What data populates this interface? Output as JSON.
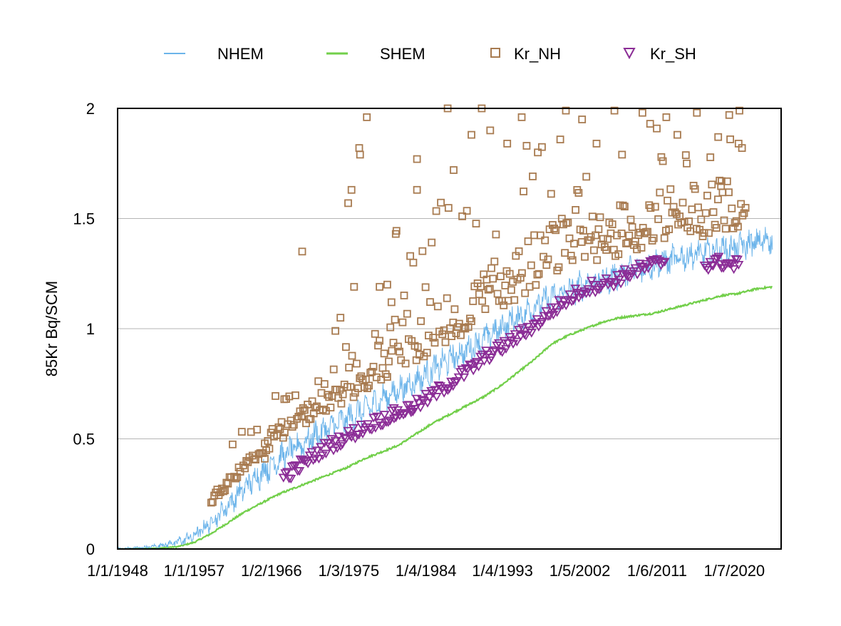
{
  "colors": {
    "nhem": "#6cb4ea",
    "shem": "#72cf4a",
    "kr_nh": "#a87b50",
    "kr_sh": "#8b2d96",
    "grid": "#b5b5b5",
    "axis": "#000000"
  },
  "chart_data": {
    "type": "line",
    "title": "",
    "xlabel": "",
    "ylabel": "85Kr Bq/SCM",
    "ylim": [
      0,
      2
    ],
    "yticks": [
      {
        "value": 0,
        "label": "0"
      },
      {
        "value": 0.5,
        "label": "0.5"
      },
      {
        "value": 1,
        "label": "1"
      },
      {
        "value": 1.5,
        "label": "1.5"
      },
      {
        "value": 2,
        "label": "2"
      }
    ],
    "xlim": [
      "1/1/1948",
      "1/1/2026"
    ],
    "xticks": [
      "1/1/1948",
      "1/1/1957",
      "1/2/1966",
      "1/3/1975",
      "1/4/1984",
      "1/4/1993",
      "1/5/2002",
      "1/6/2011",
      "1/7/2020"
    ],
    "grid": "horizontal",
    "legend_position": "top",
    "legend": [
      {
        "name": "NHEM",
        "marker": "line"
      },
      {
        "name": "SHEM",
        "marker": "line"
      },
      {
        "name": "Kr_NH",
        "marker": "square"
      },
      {
        "name": "Kr_SH",
        "marker": "triangle-down"
      }
    ],
    "series": [
      {
        "name": "NHEM",
        "kind": "line",
        "x": [
          1948,
          1952,
          1955,
          1957,
          1959,
          1961,
          1963,
          1965,
          1967,
          1969,
          1971,
          1973,
          1975,
          1977,
          1979,
          1981,
          1983,
          1985,
          1987,
          1989,
          1991,
          1993,
          1995,
          1997,
          1999,
          2001,
          2003,
          2005,
          2007,
          2009,
          2011,
          2013,
          2015,
          2017,
          2019,
          2021,
          2023,
          2025
        ],
        "y": [
          0.0,
          0.01,
          0.03,
          0.06,
          0.12,
          0.2,
          0.28,
          0.35,
          0.41,
          0.46,
          0.51,
          0.55,
          0.59,
          0.63,
          0.68,
          0.72,
          0.76,
          0.81,
          0.86,
          0.9,
          0.95,
          1.0,
          1.05,
          1.1,
          1.14,
          1.17,
          1.2,
          1.22,
          1.25,
          1.27,
          1.29,
          1.31,
          1.33,
          1.34,
          1.36,
          1.37,
          1.39,
          1.41
        ],
        "noise_amplitude": 0.05
      },
      {
        "name": "SHEM",
        "kind": "line",
        "x": [
          1948,
          1952,
          1955,
          1957,
          1959,
          1961,
          1963,
          1965,
          1967,
          1969,
          1971,
          1973,
          1975,
          1977,
          1979,
          1981,
          1983,
          1985,
          1987,
          1989,
          1991,
          1993,
          1995,
          1997,
          1999,
          2001,
          2003,
          2005,
          2007,
          2009,
          2011,
          2013,
          2015,
          2017,
          2019,
          2021,
          2023,
          2025
        ],
        "y": [
          0.0,
          0.003,
          0.01,
          0.03,
          0.07,
          0.12,
          0.17,
          0.21,
          0.25,
          0.28,
          0.31,
          0.34,
          0.37,
          0.41,
          0.44,
          0.47,
          0.52,
          0.57,
          0.61,
          0.65,
          0.69,
          0.74,
          0.8,
          0.86,
          0.93,
          0.97,
          1.0,
          1.03,
          1.05,
          1.06,
          1.07,
          1.09,
          1.11,
          1.13,
          1.15,
          1.16,
          1.18,
          1.19
        ],
        "noise_amplitude": 0.008
      },
      {
        "name": "Kr_NH",
        "kind": "scatter",
        "marker": "square",
        "x_range": [
          1959,
          2022
        ],
        "baseline_offset": 0.08,
        "outliers": [
          {
            "x": 1969.7,
            "y": 1.35
          },
          {
            "x": 1975.1,
            "y": 1.57
          },
          {
            "x": 1975.5,
            "y": 1.63
          },
          {
            "x": 1976.4,
            "y": 1.82
          },
          {
            "x": 1976.5,
            "y": 1.79
          },
          {
            "x": 1977.3,
            "y": 1.96
          },
          {
            "x": 1980.7,
            "y": 1.43
          },
          {
            "x": 1978.8,
            "y": 1.19
          },
          {
            "x": 1979.7,
            "y": 1.2
          },
          {
            "x": 1986.8,
            "y": 2.0
          },
          {
            "x": 1990.8,
            "y": 2.0
          },
          {
            "x": 1995.5,
            "y": 1.96
          },
          {
            "x": 2000.7,
            "y": 1.99
          },
          {
            "x": 2006.4,
            "y": 1.99
          },
          {
            "x": 2009.7,
            "y": 1.98
          },
          {
            "x": 2016.1,
            "y": 1.98
          },
          {
            "x": 2019.9,
            "y": 1.97
          },
          {
            "x": 2010.6,
            "y": 1.93
          },
          {
            "x": 2012.5,
            "y": 1.96
          },
          {
            "x": 2013.8,
            "y": 1.88
          },
          {
            "x": 2018.6,
            "y": 1.87
          },
          {
            "x": 2019.0,
            "y": 1.67
          },
          {
            "x": 2021.0,
            "y": 1.84
          },
          {
            "x": 2021.4,
            "y": 1.82
          },
          {
            "x": 1973.6,
            "y": 0.99
          },
          {
            "x": 1974.2,
            "y": 1.05
          },
          {
            "x": 1967.6,
            "y": 0.68
          },
          {
            "x": 1983.2,
            "y": 1.77
          },
          {
            "x": 1983.2,
            "y": 1.63
          },
          {
            "x": 1987.5,
            "y": 1.72
          },
          {
            "x": 1989.6,
            "y": 1.88
          },
          {
            "x": 1991.8,
            "y": 1.9
          },
          {
            "x": 1993.8,
            "y": 1.84
          },
          {
            "x": 1997.4,
            "y": 1.8
          },
          {
            "x": 2002.6,
            "y": 1.95
          },
          {
            "x": 2004.3,
            "y": 1.84
          },
          {
            "x": 2007.3,
            "y": 1.79
          },
          {
            "x": 2014.9,
            "y": 1.75
          },
          {
            "x": 1975.8,
            "y": 1.19
          },
          {
            "x": 1980.2,
            "y": 1.12
          },
          {
            "x": 1965.3,
            "y": 0.41
          }
        ]
      },
      {
        "name": "Kr_SH",
        "kind": "scatter",
        "marker": "triangle-down",
        "x": [
          1967.5,
          1968.5,
          1969.5,
          1971.0,
          1972.5,
          1974.0,
          1975.5,
          1977.0,
          1978.5,
          1980.5,
          1982.5,
          1984.0,
          1985.5,
          1987.0,
          1988.5,
          1990.0,
          1991.5,
          1993.0,
          1994.5,
          1996.0,
          1997.5,
          1999.0,
          2000.5,
          2002.0,
          2003.5,
          2005.0,
          2006.5,
          2008.0,
          2009.5,
          2011.0,
          2012.5,
          2017.0,
          2018.0,
          2019.0,
          2020.0,
          2021.0
        ],
        "y": [
          0.33,
          0.35,
          0.38,
          0.42,
          0.46,
          0.49,
          0.52,
          0.55,
          0.58,
          0.61,
          0.64,
          0.67,
          0.71,
          0.75,
          0.79,
          0.83,
          0.88,
          0.91,
          0.95,
          0.99,
          1.03,
          1.08,
          1.12,
          1.16,
          1.19,
          1.2,
          1.22,
          1.25,
          1.27,
          1.29,
          1.31,
          1.29,
          1.3,
          1.3,
          1.29,
          1.29
        ],
        "jitter": 0.03
      }
    ]
  }
}
